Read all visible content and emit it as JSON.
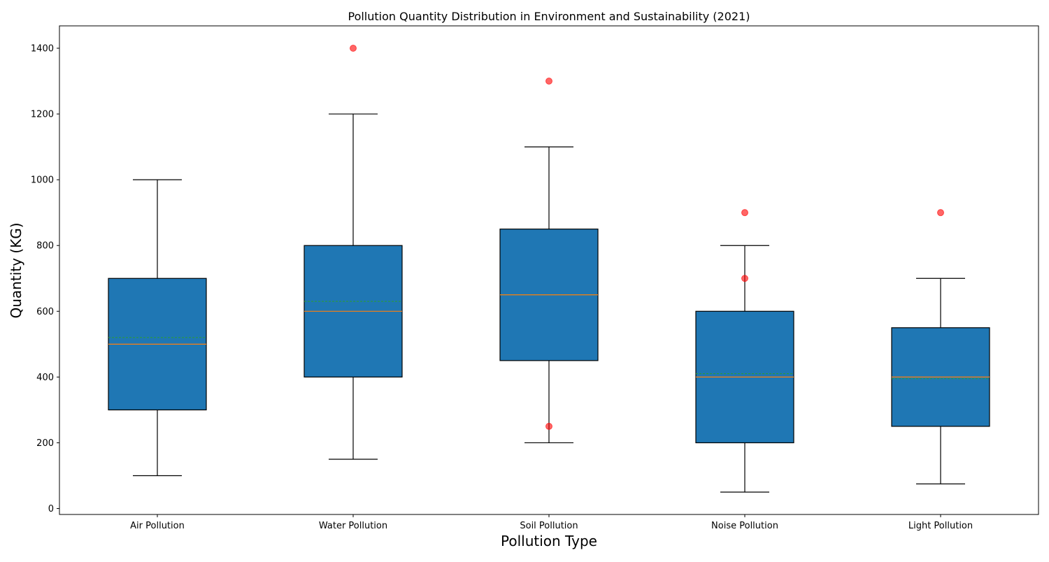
{
  "chart_data": {
    "type": "boxplot",
    "title": "Pollution Quantity Distribution in Environment and Sustainability (2021)",
    "xlabel": "Pollution Type",
    "ylabel": "Quantity (KG)",
    "ylim": [
      -18,
      1468
    ],
    "yticks": [
      0,
      200,
      400,
      600,
      800,
      1000,
      1200,
      1400
    ],
    "categories": [
      "Air Pollution",
      "Water Pollution",
      "Soil Pollution",
      "Noise Pollution",
      "Light Pollution"
    ],
    "boxes": [
      {
        "category": "Air Pollution",
        "whisker_low": 100,
        "q1": 300,
        "median": 500,
        "mean": 520,
        "q3": 700,
        "whisker_high": 1000,
        "outliers": []
      },
      {
        "category": "Water Pollution",
        "whisker_low": 150,
        "q1": 400,
        "median": 600,
        "mean": 630,
        "q3": 800,
        "whisker_high": 1200,
        "outliers": [
          1400
        ]
      },
      {
        "category": "Soil Pollution",
        "whisker_low": 200,
        "q1": 450,
        "median": 650,
        "mean": 650,
        "q3": 850,
        "whisker_high": 1100,
        "outliers": [
          1300,
          250
        ]
      },
      {
        "category": "Noise Pollution",
        "whisker_low": 50,
        "q1": 200,
        "median": 400,
        "mean": 410,
        "q3": 600,
        "whisker_high": 800,
        "outliers": [
          900,
          700
        ]
      },
      {
        "category": "Light Pollution",
        "whisker_low": 75,
        "q1": 250,
        "median": 400,
        "mean": 395,
        "q3": 550,
        "whisker_high": 700,
        "outliers": [
          900
        ]
      }
    ],
    "colors": {
      "box_fill": "#1f77b4",
      "median_line": "#ff7f0e",
      "mean_line": "#2ca02c",
      "outlier": "#ff0000",
      "whisker": "#000000"
    },
    "grid": false,
    "legend": "none"
  }
}
